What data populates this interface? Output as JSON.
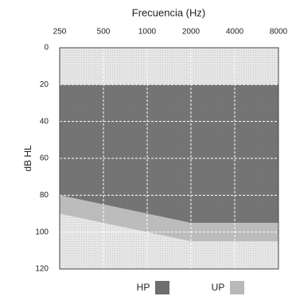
{
  "chart_data": {
    "type": "range-area",
    "title": "Frecuencia (Hz)",
    "y_label": "dB HL",
    "x": [
      250,
      500,
      1000,
      2000,
      4000,
      8000
    ],
    "x_scale": "log",
    "xlim": [
      250,
      8000
    ],
    "xticks": [
      250,
      500,
      1000,
      2000,
      4000,
      8000
    ],
    "x_axis_position": "top",
    "ylim": [
      0,
      120
    ],
    "yticks": [
      0,
      20,
      40,
      60,
      80,
      100,
      120
    ],
    "y_inverted": true,
    "grid": true,
    "series": [
      {
        "name": "HP",
        "color": "#6e6e6e",
        "from": [
          20,
          20,
          20,
          20,
          20,
          20
        ],
        "to": [
          80,
          85,
          90,
          95,
          95,
          95
        ]
      },
      {
        "name": "UP",
        "color": "#b9b9b9",
        "from": [
          80,
          85,
          90,
          95,
          95,
          95
        ],
        "to": [
          90,
          95,
          100,
          105,
          105,
          105
        ]
      }
    ]
  }
}
